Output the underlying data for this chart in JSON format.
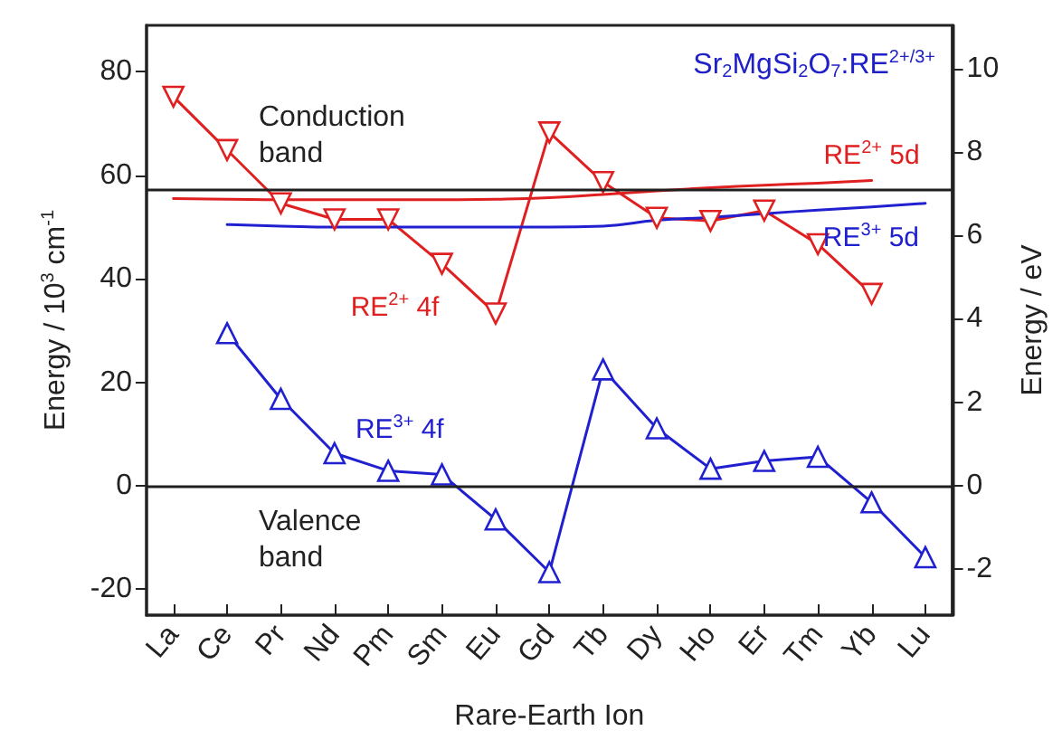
{
  "chart_data": {
    "type": "line",
    "title": "Sr$_{2}$MgSi$_{2}$O$_{7}$:RE$^{2+/3+}$",
    "xlabel": "Rare-Earth Ion",
    "ylabel": "Energy / 10$^{3}$ cm$^{-1}$",
    "y2label": "Energy / eV",
    "categories": [
      "La",
      "Ce",
      "Pr",
      "Nd",
      "Pm",
      "Sm",
      "Eu",
      "Gd",
      "Tb",
      "Dy",
      "Ho",
      "Er",
      "Tm",
      "Yb",
      "Lu"
    ],
    "ylim": [
      -25,
      89
    ],
    "yticks": [
      -20,
      0,
      20,
      40,
      60,
      80
    ],
    "y2lim": [
      -3.1,
      11.03
    ],
    "y2ticks": [
      -2,
      0,
      2,
      4,
      6,
      8,
      10
    ],
    "grid": false,
    "series": [
      {
        "name": "RE$^{2+}$ 4f",
        "color": "#e02020",
        "marker": "triangle",
        "values": [
          75.2,
          64.9,
          54.6,
          51.5,
          51.5,
          42.9,
          33.3,
          68.3,
          58.7,
          51.8,
          51.2,
          53.2,
          46.7,
          37.1,
          null
        ]
      },
      {
        "name": "RE$^{3+}$ 4f",
        "color": "#2020d0",
        "marker": "triangle",
        "values": [
          null,
          29.5,
          16.8,
          6.3,
          2.9,
          2.2,
          -6.5,
          -16.7,
          22.5,
          11.1,
          3.3,
          4.8,
          5.6,
          -3.2,
          -13.8
        ]
      },
      {
        "name": "RE$^{2+}$ 5d",
        "color": "#e02020",
        "marker": "none",
        "values": [
          55.5,
          55.4,
          55.3,
          55.3,
          55.3,
          55.3,
          55.4,
          55.7,
          56.3,
          57.0,
          57.6,
          58.1,
          58.5,
          59.0,
          null
        ]
      },
      {
        "name": "RE$^{3+}$ 5d",
        "color": "#2020d0",
        "marker": "none",
        "values": [
          null,
          50.5,
          50.2,
          50.0,
          50.0,
          50.0,
          50.0,
          50.0,
          50.2,
          51.3,
          51.9,
          52.6,
          53.3,
          53.9,
          54.6
        ]
      }
    ],
    "ref_lines": [
      {
        "axis": "y",
        "value": 57.2,
        "label": "Conduction band",
        "color": "#202020"
      },
      {
        "axis": "y",
        "value": 0,
        "label": "Valence band",
        "color": "#202020"
      }
    ]
  }
}
